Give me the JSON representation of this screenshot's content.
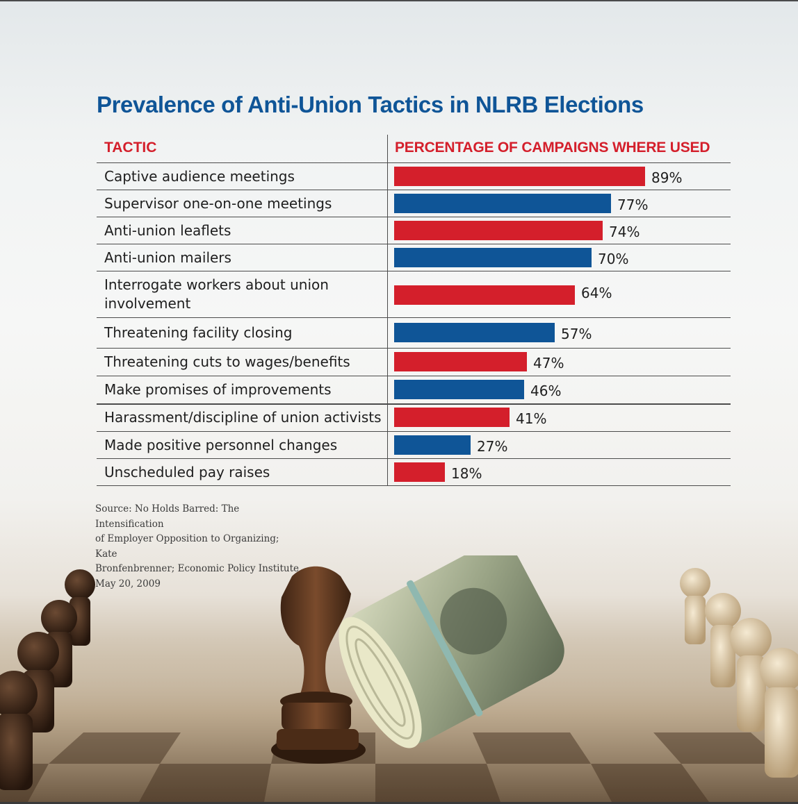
{
  "chart_data": {
    "type": "bar",
    "orientation": "horizontal",
    "title": "Prevalence of Anti-Union Tactics in NLRB Elections",
    "column_headers": {
      "tactic": "TACTIC",
      "value": "PERCENTAGE OF CAMPAIGNS WHERE USED"
    },
    "categories": [
      "Captive audience meetings",
      "Supervisor one-on-one meetings",
      "Anti-union leaflets",
      "Anti-union mailers",
      "Interrogate workers about union involvement",
      "Threatening facility closing",
      "Threatening cuts to wages/benefits",
      "Make promises of improvements",
      "Harassment/discipline of union activists",
      "Made positive personnel changes",
      "Unscheduled pay raises"
    ],
    "values": [
      89,
      77,
      74,
      70,
      64,
      57,
      47,
      46,
      41,
      27,
      18
    ],
    "value_labels": [
      "89%",
      "77%",
      "74%",
      "70%",
      "64%",
      "57%",
      "47%",
      "46%",
      "41%",
      "27%",
      "18%"
    ],
    "unit": "%",
    "xlim": [
      0,
      100
    ],
    "bar_colors": [
      "#d41f2b",
      "#0f5597"
    ],
    "grid": false
  },
  "source_lines": [
    "Source: No Holds Barred: The Intensification",
    "of Employer Opposition to Organizing; Kate",
    "Bronfenbrenner; Economic Policy Institute,",
    "May 20, 2009"
  ],
  "colors": {
    "title": "#0f5597",
    "header": "#d41f2b",
    "red_bar": "#d41f2b",
    "blue_bar": "#0f5597",
    "rule": "#4b4b4b"
  },
  "background_image": {
    "description_icons": [
      "chess-knight-icon",
      "money-roll-icon",
      "chess-pawn-icon"
    ]
  }
}
